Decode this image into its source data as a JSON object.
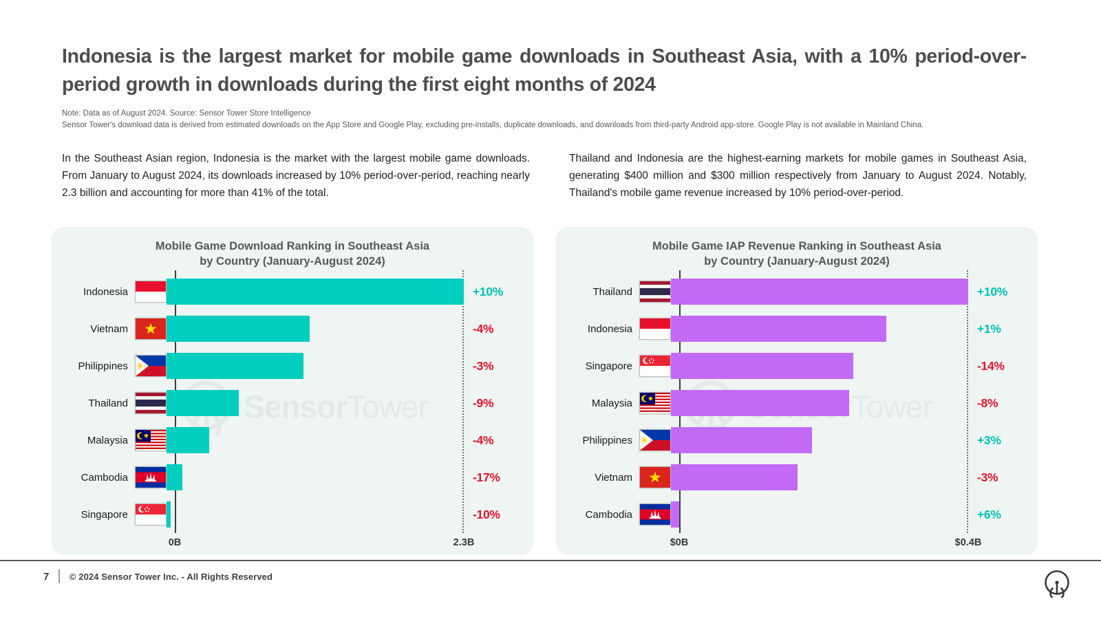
{
  "page": {
    "title": "Indonesia is the largest market for mobile game downloads in Southeast Asia, with a 10% period-over-period growth in downloads during the first eight months of 2024",
    "note_line1": "Note: Data as of August 2024. Source: Sensor Tower Store Intelligence",
    "note_line2": "Sensor Tower's download data is derived from estimated downloads on the App Store and Google Play, excluding pre-installs, duplicate downloads, and downloads from third-party Android app-store. Google Play is not available in Mainland China.",
    "left_paragraph": "In the Southeast Asian region, Indonesia is the market with the largest mobile game downloads. From January to August 2024, its downloads increased by 10% period-over-period, reaching nearly 2.3 billion and accounting for more than 41% of the total.",
    "right_paragraph": "Thailand and Indonesia are the highest-earning markets for mobile games in Southeast Asia, generating $400 million and $300 million respectively from January to August 2024. Notably, Thailand's mobile game revenue increased by 10% period-over-period.",
    "watermark": {
      "bold": "Sensor",
      "light": "Tower"
    },
    "footer": {
      "page_number": "7",
      "copyright": "© 2024 Sensor Tower Inc. - All Rights Reserved"
    }
  },
  "colors": {
    "heading": "#4d4d4f",
    "panel_bg": "#eff5f2",
    "teal_bar": "#00cebe",
    "purple_bar": "#c26af5",
    "positive": "#00c2b3",
    "negative": "#e8112d",
    "watermark": "#e3e9e6"
  },
  "chart_data": [
    {
      "type": "bar",
      "orientation": "horizontal",
      "title_line1": "Mobile Game Download Ranking in Southeast Asia",
      "title_line2": "by Country (January-August 2024)",
      "unit": "downloads (billions)",
      "bar_color": "#00cebe",
      "axis": {
        "min_label": "0B",
        "max_label": "2.3B",
        "min": 0,
        "max": 2.3
      },
      "categories": [
        "Indonesia",
        "Vietnam",
        "Philippines",
        "Thailand",
        "Malaysia",
        "Cambodia",
        "Singapore"
      ],
      "flags": [
        "id",
        "vn",
        "ph",
        "th",
        "my",
        "kh",
        "sg"
      ],
      "values": [
        2.3,
        1.11,
        1.06,
        0.56,
        0.33,
        0.12,
        0.03
      ],
      "change_labels": [
        "+10%",
        "-4%",
        "-3%",
        "-9%",
        "-4%",
        "-17%",
        "-10%"
      ],
      "pct_change": [
        10,
        -4,
        -3,
        -9,
        -4,
        -17,
        -10
      ],
      "legend": "none",
      "grid": "off"
    },
    {
      "type": "bar",
      "orientation": "horizontal",
      "title_line1": "Mobile Game IAP Revenue Ranking in Southeast Asia",
      "title_line2": "by Country (January-August 2024)",
      "unit": "IAP revenue ($ billions)",
      "bar_color": "#c26af5",
      "axis": {
        "min_label": "$0B",
        "max_label": "$0.4B",
        "min": 0,
        "max": 0.4
      },
      "categories": [
        "Thailand",
        "Indonesia",
        "Singapore",
        "Malaysia",
        "Philippines",
        "Vietnam",
        "Cambodia"
      ],
      "flags": [
        "th",
        "id",
        "sg",
        "my",
        "ph",
        "vn",
        "kh"
      ],
      "values": [
        0.4,
        0.29,
        0.245,
        0.24,
        0.19,
        0.17,
        0.011
      ],
      "change_labels": [
        "+10%",
        "+1%",
        "-14%",
        "-8%",
        "+3%",
        "-3%",
        "+6%"
      ],
      "pct_change": [
        10,
        1,
        -14,
        -8,
        3,
        -3,
        6
      ],
      "legend": "none",
      "grid": "off"
    }
  ]
}
